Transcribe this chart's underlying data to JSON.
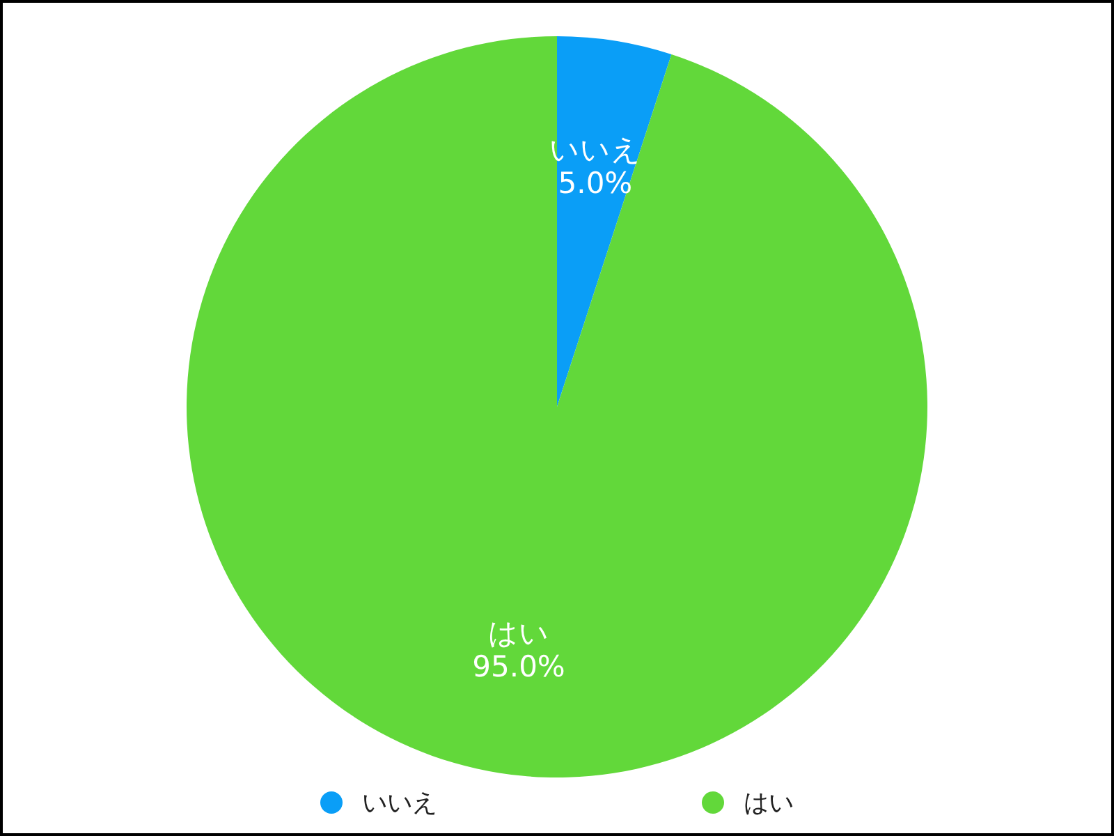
{
  "chart_data": {
    "type": "pie",
    "categories": [
      "いいえ",
      "はい"
    ],
    "values": [
      5,
      95
    ],
    "colors": [
      "#0a9ef7",
      "#62d83a"
    ],
    "value_labels": [
      "5.0%",
      "95.0%"
    ],
    "legend": "bottom"
  }
}
